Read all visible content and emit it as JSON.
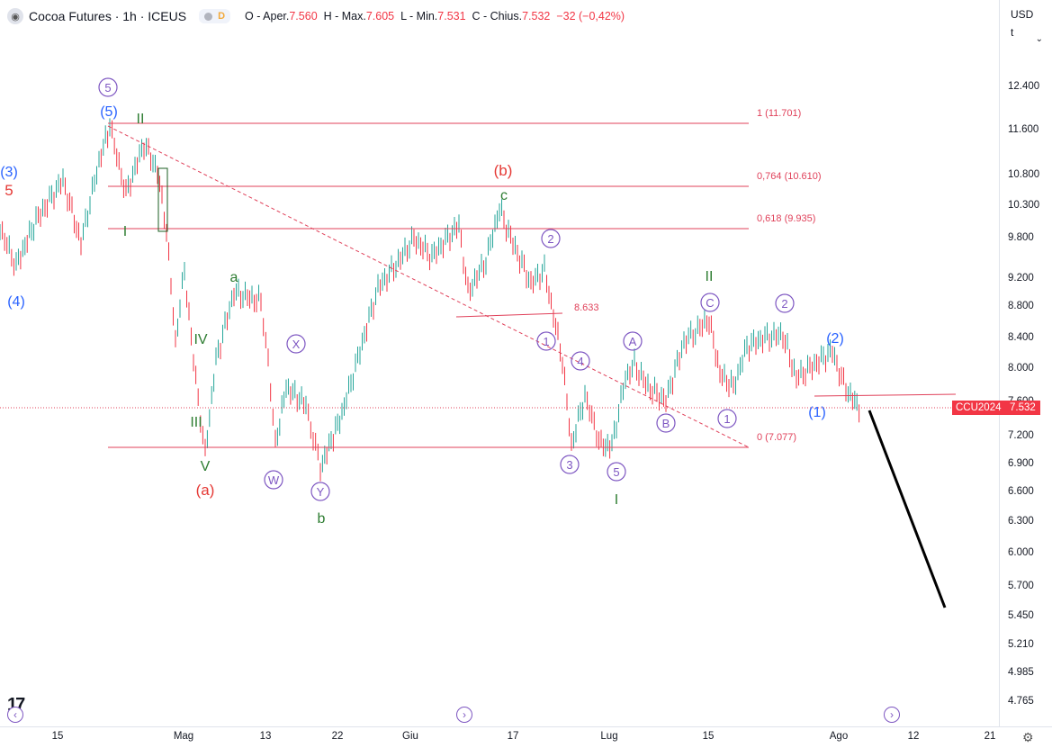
{
  "header": {
    "symbol_icon": "cocoa-symbol-icon",
    "title": "Cocoa Futures · 1h · ICEUS",
    "d_flag": "D",
    "o_label": "O - Aper.",
    "o_val": "7.560",
    "h_label": "H - Max.",
    "h_val": "7.605",
    "l_label": "L - Min.",
    "l_val": "7.531",
    "c_label": "C - Chius.",
    "c_val": "7.532",
    "change": "−32 (−0,42%)"
  },
  "currency": {
    "label": "USD",
    "unit": "t"
  },
  "price_ticks": [
    "12.400",
    "11.600",
    "10.800",
    "10.300",
    "9.800",
    "9.200",
    "8.800",
    "8.400",
    "8.000",
    "7.600",
    "7.200",
    "6.900",
    "6.600",
    "6.300",
    "6.000",
    "5.700",
    "5.450",
    "5.210",
    "4.985",
    "4.765"
  ],
  "time_ticks": [
    "15",
    "Mag",
    "13",
    "22",
    "Giu",
    "17",
    "Lug",
    "15",
    "Ago",
    "12",
    "21"
  ],
  "symbol_badge": "CCU2024",
  "price_badge": "7.532",
  "fib_labels": [
    "1 (11.701)",
    "0,764 (10.610)",
    "0,618 (9.935)",
    "0 (7.077)"
  ],
  "level_label": "8.633",
  "wave_labels": {
    "circled": [
      "5",
      "W",
      "X",
      "Y",
      "1",
      "2",
      "3",
      "4",
      "5",
      "A",
      "B",
      "C",
      "1",
      "2"
    ],
    "blue": [
      "(5)",
      "(3)",
      "(4)",
      "(2)",
      "(1)"
    ],
    "red": [
      "5",
      "(b)",
      "(a)"
    ],
    "green": [
      "II",
      "I",
      "a",
      "IV",
      "III",
      "V",
      "b",
      "c",
      "II",
      "I"
    ]
  },
  "colors": {
    "up": "#26a69a",
    "down": "#f23645",
    "fib": "#e0415a",
    "purple": "#7e57c2",
    "blue": "#2962ff",
    "green": "#2e7d32",
    "red": "#e53935"
  }
}
